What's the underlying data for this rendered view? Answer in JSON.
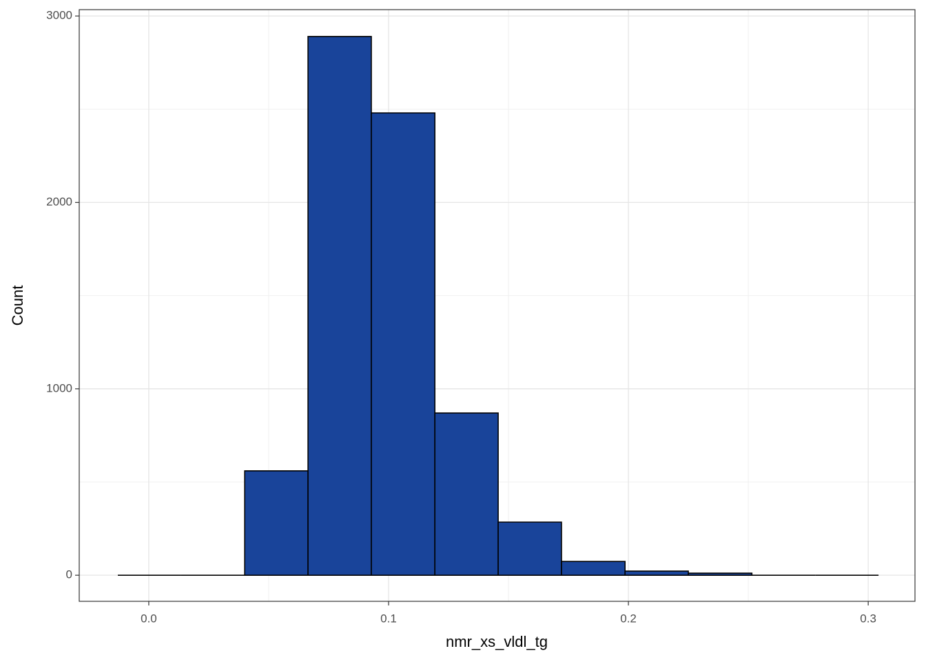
{
  "chart_data": {
    "type": "histogram",
    "x_label": "nmr_xs_vldl_tg",
    "y_label": "Count",
    "bins": [
      -0.0129,
      0.0135,
      0.04,
      0.0664,
      0.0928,
      0.1193,
      0.1457,
      0.1721,
      0.1986,
      0.225,
      0.2515,
      0.2779,
      0.3043
    ],
    "values": [
      0,
      0,
      560,
      2890,
      2480,
      870,
      285,
      74,
      22,
      11,
      0,
      0
    ],
    "color": "#19449a",
    "xlim": [
      -0.029,
      0.3195
    ],
    "ylim": [
      -140,
      3034
    ],
    "xticks": [
      {
        "value": 0,
        "label": "0.0"
      },
      0.1,
      0.2,
      0.3
    ],
    "yticks": [
      0,
      1000,
      2000,
      3000
    ],
    "grid": true
  }
}
